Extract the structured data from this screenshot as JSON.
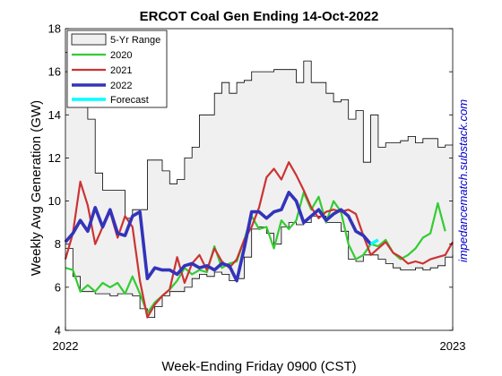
{
  "chart_data": {
    "type": "line",
    "title": "ERCOT Coal Gen Ending 14-Oct-2022",
    "xlabel": "Week-Ending Friday 0900 (CST)",
    "ylabel": "Weekly Avg Generation (GW)",
    "credit": "impedancematch.substack.com",
    "xlim": [
      0,
      52
    ],
    "ylim": [
      4,
      18
    ],
    "x_ticks": [
      {
        "value": 0,
        "label": "2022"
      },
      {
        "value": 52,
        "label": "2023"
      }
    ],
    "y_ticks": [
      4,
      6,
      8,
      10,
      12,
      14,
      16,
      18
    ],
    "grid": false,
    "legend_position": "top-left",
    "range": {
      "name": "5-Yr Range",
      "color": "#f0f0f0",
      "week": [
        0,
        1,
        2,
        3,
        4,
        5,
        6,
        7,
        8,
        9,
        10,
        11,
        12,
        13,
        14,
        15,
        16,
        17,
        18,
        19,
        20,
        21,
        22,
        23,
        24,
        25,
        26,
        27,
        28,
        29,
        30,
        31,
        32,
        33,
        34,
        35,
        36,
        37,
        38,
        39,
        40,
        41,
        42,
        43,
        44,
        45,
        46,
        47,
        48,
        49,
        50,
        51,
        52
      ],
      "upper": [
        16.9,
        15.5,
        14.5,
        13.8,
        11.3,
        10.5,
        10.5,
        10.5,
        9.2,
        9.6,
        9.6,
        11.9,
        11.9,
        11.4,
        10.8,
        11.0,
        12.0,
        12.5,
        14.0,
        14.0,
        15.0,
        15.5,
        15.0,
        15.5,
        15.6,
        16.0,
        16.0,
        16.0,
        16.1,
        16.1,
        16.1,
        15.5,
        16.5,
        15.5,
        15.5,
        15.0,
        14.6,
        14.7,
        13.8,
        14.2,
        11.8,
        14.0,
        12.5,
        12.7,
        12.7,
        12.8,
        13.0,
        12.7,
        12.9,
        12.9,
        12.5,
        12.6,
        12.6
      ],
      "lower": [
        7.8,
        6.5,
        5.8,
        5.8,
        5.7,
        5.7,
        5.6,
        5.7,
        5.7,
        5.6,
        5.0,
        4.6,
        5.1,
        5.6,
        5.8,
        5.8,
        6.0,
        6.4,
        6.6,
        6.5,
        6.7,
        6.6,
        6.3,
        6.4,
        7.4,
        8.7,
        8.8,
        8.5,
        8.0,
        8.8,
        9.0,
        8.9,
        9.0,
        9.3,
        9.3,
        9.0,
        9.0,
        8.6,
        7.3,
        7.2,
        7.5,
        7.5,
        7.3,
        7.1,
        6.9,
        6.8,
        6.8,
        6.9,
        6.8,
        6.9,
        7.0,
        7.4,
        7.5
      ]
    },
    "series": [
      {
        "name": "2020",
        "color": "#33cc33",
        "week": [
          0,
          1,
          2,
          3,
          4,
          5,
          6,
          7,
          8,
          9,
          10,
          11,
          12,
          13,
          14,
          15,
          16,
          17,
          18,
          19,
          20,
          21,
          22,
          23,
          24,
          25,
          26,
          27,
          28,
          29,
          30,
          31,
          32,
          33,
          34,
          35,
          36,
          37,
          38,
          39,
          40,
          41,
          42,
          43,
          44,
          45,
          46,
          47,
          48,
          49,
          50,
          51
        ],
        "values": [
          6.9,
          6.8,
          5.8,
          6.1,
          5.8,
          6.2,
          6.0,
          6.2,
          5.7,
          6.5,
          5.7,
          4.8,
          5.3,
          5.6,
          5.9,
          6.3,
          6.9,
          6.6,
          6.8,
          6.7,
          7.9,
          6.9,
          7.1,
          7.2,
          8.2,
          9.3,
          8.7,
          8.8,
          7.8,
          9.1,
          8.7,
          9.1,
          10.4,
          9.6,
          10.2,
          9.0,
          10.0,
          9.5,
          8.0,
          7.3,
          7.5,
          8.0,
          7.9,
          8.2,
          7.6,
          7.3,
          7.5,
          7.8,
          8.3,
          8.5,
          9.9,
          8.6
        ]
      },
      {
        "name": "2021",
        "color": "#cc3333",
        "week": [
          0,
          1,
          2,
          3,
          4,
          5,
          6,
          7,
          8,
          9,
          10,
          11,
          12,
          13,
          14,
          15,
          16,
          17,
          18,
          19,
          20,
          21,
          22,
          23,
          24,
          25,
          26,
          27,
          28,
          29,
          30,
          31,
          32,
          33,
          34,
          35,
          36,
          37,
          38,
          39,
          40,
          41,
          42,
          43,
          44,
          45,
          46,
          47,
          48,
          49,
          50,
          51,
          52
        ],
        "values": [
          7.3,
          8.5,
          10.9,
          9.8,
          8.0,
          8.8,
          9.5,
          8.3,
          9.3,
          8.8,
          6.3,
          4.6,
          5.2,
          5.6,
          5.9,
          7.4,
          6.2,
          7.1,
          7.5,
          6.8,
          7.8,
          7.2,
          6.9,
          7.3,
          8.2,
          8.8,
          9.7,
          11.1,
          11.5,
          11.0,
          11.8,
          11.2,
          10.5,
          9.7,
          9.2,
          9.5,
          9.6,
          9.5,
          9.6,
          9.4,
          8.4,
          7.5,
          7.8,
          8.1,
          7.6,
          7.4,
          7.1,
          7.2,
          7.1,
          7.3,
          7.4,
          7.5,
          8.1
        ]
      },
      {
        "name": "2022",
        "color": "#3333bb",
        "week": [
          0,
          1,
          2,
          3,
          4,
          5,
          6,
          7,
          8,
          9,
          10,
          11,
          12,
          13,
          14,
          15,
          16,
          17,
          18,
          19,
          20,
          21,
          22,
          23,
          24,
          25,
          26,
          27,
          28,
          29,
          30,
          31,
          32,
          33,
          34,
          35,
          36,
          37,
          38,
          39,
          40,
          41
        ],
        "values": [
          8.1,
          8.5,
          9.1,
          8.6,
          9.7,
          8.8,
          9.6,
          8.5,
          8.4,
          9.3,
          9.5,
          6.4,
          6.9,
          6.8,
          6.8,
          6.6,
          7.0,
          7.1,
          6.9,
          7.0,
          6.8,
          7.1,
          7.0,
          6.3,
          7.8,
          9.5,
          9.5,
          9.2,
          9.5,
          9.6,
          10.4,
          10.0,
          9.0,
          9.3,
          9.6,
          9.1,
          9.4,
          9.6,
          9.3,
          8.6,
          8.4,
          8.0
        ]
      },
      {
        "name": "Forecast",
        "color": "#00ffff",
        "week": [
          41,
          42
        ],
        "values": [
          8.0,
          8.2
        ]
      }
    ]
  }
}
